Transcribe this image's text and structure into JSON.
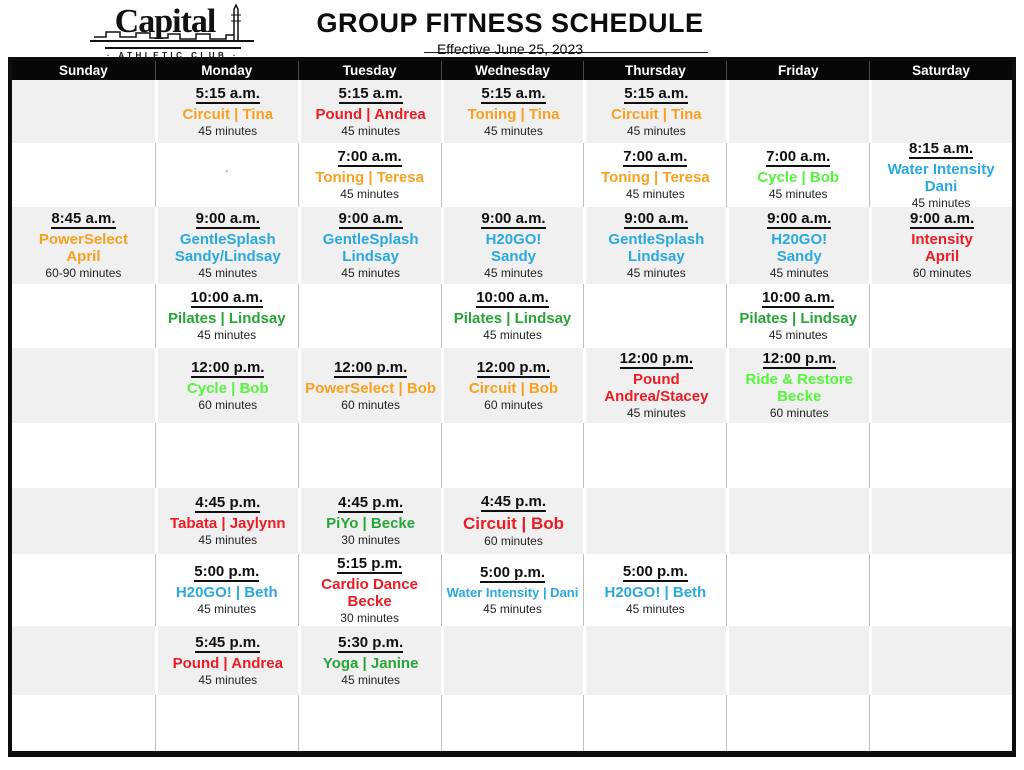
{
  "logo": {
    "name": "Capital",
    "sub": "· ATHLETIC CLUB ·"
  },
  "header": {
    "title": "GROUP FITNESS SCHEDULE",
    "subtitle": "Effective June 25, 2023"
  },
  "colors": {
    "orange": "#F9A11E",
    "red": "#EC1C24",
    "blue": "#2AA9E0",
    "green": "#27A538",
    "bright_green": "#55F53C",
    "header_bg": "#070707",
    "header_text": "#FFFFFF",
    "row_shade": "#F0F0F0"
  },
  "schedule": {
    "columns": [
      "Sunday",
      "Monday",
      "Tuesday",
      "Wednesday",
      "Thursday",
      "Friday",
      "Saturday"
    ],
    "rows": [
      {
        "cells": [
          null,
          {
            "time": "5:15 a.m.",
            "lines": [
              "Circuit | Tina"
            ],
            "color": "orange",
            "duration": "45 minutes"
          },
          {
            "time": "5:15 a.m.",
            "lines": [
              "Pound | Andrea"
            ],
            "color": "red",
            "duration": "45 minutes"
          },
          {
            "time": "5:15 a.m.",
            "lines": [
              "Toning | Tina"
            ],
            "color": "orange",
            "duration": "45 minutes"
          },
          {
            "time": "5:15 a.m.",
            "lines": [
              "Circuit | Tina"
            ],
            "color": "orange",
            "duration": "45 minutes"
          },
          null,
          null
        ]
      },
      {
        "cells": [
          null,
          {
            "note": "`"
          },
          {
            "time": "7:00 a.m.",
            "lines": [
              "Toning | Teresa"
            ],
            "color": "orange",
            "duration": "45 minutes"
          },
          null,
          {
            "time": "7:00 a.m.",
            "lines": [
              "Toning | Teresa"
            ],
            "color": "orange",
            "duration": "45 minutes"
          },
          {
            "time": "7:00 a.m.",
            "lines": [
              "Cycle | Bob"
            ],
            "color": "bright_green",
            "duration": "45 minutes"
          },
          {
            "time": "8:15 a.m.",
            "lines": [
              "Water Intensity",
              "Dani"
            ],
            "color": "blue",
            "duration": "45 minutes"
          }
        ]
      },
      {
        "cells": [
          {
            "time": "8:45 a.m.",
            "lines": [
              "PowerSelect",
              "April"
            ],
            "color": "orange",
            "duration": "60-90 minutes"
          },
          {
            "time": "9:00 a.m.",
            "lines": [
              "GentleSplash",
              "Sandy/Lindsay"
            ],
            "color": "blue",
            "duration": "45 minutes"
          },
          {
            "time": "9:00 a.m.",
            "lines": [
              "GentleSplash",
              "Lindsay"
            ],
            "color": "blue",
            "duration": "45 minutes"
          },
          {
            "time": "9:00 a.m.",
            "lines": [
              "H20GO!",
              "Sandy"
            ],
            "color": "blue",
            "duration": "45 minutes"
          },
          {
            "time": "9:00 a.m.",
            "lines": [
              "GentleSplash",
              "Lindsay"
            ],
            "color": "blue",
            "duration": "45 minutes"
          },
          {
            "time": "9:00 a.m.",
            "lines": [
              "H20GO!",
              "Sandy"
            ],
            "color": "blue",
            "duration": "45 minutes"
          },
          {
            "time": "9:00 a.m.",
            "lines": [
              "Intensity",
              "April"
            ],
            "color": "red",
            "duration": "60 minutes"
          }
        ]
      },
      {
        "cells": [
          null,
          {
            "time": "10:00 a.m.",
            "lines": [
              "Pilates | Lindsay"
            ],
            "color": "green",
            "duration": "45 minutes"
          },
          null,
          {
            "time": "10:00 a.m.",
            "lines": [
              "Pilates | Lindsay"
            ],
            "color": "green",
            "duration": "45 minutes"
          },
          null,
          {
            "time": "10:00 a.m.",
            "lines": [
              "Pilates | Lindsay"
            ],
            "color": "green",
            "duration": "45 minutes"
          },
          null
        ]
      },
      {
        "cells": [
          null,
          {
            "time": "12:00 p.m.",
            "lines": [
              "Cycle | Bob"
            ],
            "color": "bright_green",
            "duration": "60 minutes"
          },
          {
            "time": "12:00 p.m.",
            "lines": [
              "PowerSelect | Bob"
            ],
            "color": "orange",
            "duration": "60 minutes"
          },
          {
            "time": "12:00 p.m.",
            "lines": [
              "Circuit | Bob"
            ],
            "color": "orange",
            "duration": "60 minutes"
          },
          {
            "time": "12:00 p.m.",
            "lines": [
              "Pound",
              "Andrea/Stacey"
            ],
            "color": "red",
            "duration": "45 minutes"
          },
          {
            "time": "12:00 p.m.",
            "lines": [
              "Ride & Restore",
              "Becke"
            ],
            "color": "bright_green",
            "duration": "60 minutes"
          },
          null
        ]
      },
      {
        "cells": [
          null,
          null,
          null,
          null,
          null,
          null,
          null
        ]
      },
      {
        "cells": [
          null,
          {
            "time": "4:45 p.m.",
            "lines": [
              "Tabata | Jaylynn"
            ],
            "color": "red",
            "duration": "45 minutes"
          },
          {
            "time": "4:45 p.m.",
            "lines": [
              "PiYo | Becke"
            ],
            "color": "green",
            "duration": "30 minutes"
          },
          {
            "time": "4:45 p.m.",
            "lines": [
              "Circuit | Bob"
            ],
            "color": "red",
            "duration": "60 minutes",
            "size": "large"
          },
          null,
          null,
          null
        ]
      },
      {
        "cells": [
          null,
          {
            "time": "5:00 p.m.",
            "lines": [
              "H20GO! | Beth"
            ],
            "color": "blue",
            "duration": "45 minutes"
          },
          {
            "time": "5:15 p.m.",
            "lines": [
              "Cardio Dance",
              "Becke"
            ],
            "color": "red",
            "duration": "30 minutes"
          },
          {
            "time": "5:00 p.m.",
            "lines": [
              "Water Intensity | Dani"
            ],
            "color": "blue",
            "duration": "45 minutes",
            "size": "small"
          },
          {
            "time": "5:00 p.m.",
            "lines": [
              "H20GO! | Beth"
            ],
            "color": "blue",
            "duration": "45 minutes"
          },
          null,
          null
        ]
      },
      {
        "cells": [
          null,
          {
            "time": "5:45 p.m.",
            "lines": [
              "Pound | Andrea"
            ],
            "color": "red",
            "duration": "45 minutes"
          },
          {
            "time": "5:30 p.m.",
            "lines": [
              "Yoga | Janine"
            ],
            "color": "green",
            "duration": "45 minutes"
          },
          null,
          null,
          null,
          null
        ]
      },
      {
        "cells": [
          null,
          null,
          null,
          null,
          null,
          null,
          null
        ]
      }
    ]
  }
}
